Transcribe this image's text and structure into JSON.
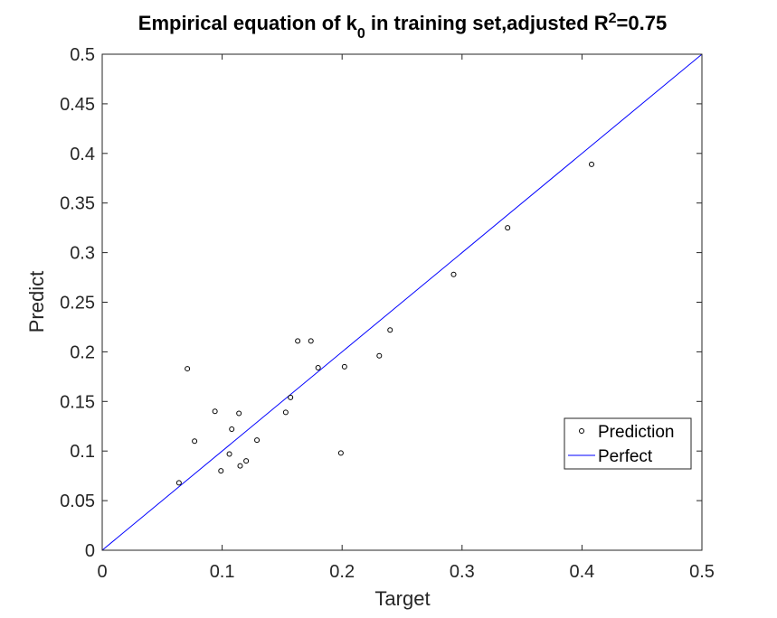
{
  "chart_data": {
    "type": "scatter",
    "title": {
      "main": "Empirical equation of k",
      "subscript": "0",
      "middle": " in training set,adjusted R",
      "superscript": "2",
      "end": "=0.75"
    },
    "xlabel": "Target",
    "ylabel": "Predict",
    "xlim": [
      0,
      0.5
    ],
    "ylim": [
      0,
      0.5
    ],
    "x_ticks": [
      "0",
      "0.1",
      "0.2",
      "0.3",
      "0.4",
      "0.5"
    ],
    "y_ticks": [
      "0",
      "0.05",
      "0.1",
      "0.15",
      "0.2",
      "0.25",
      "0.3",
      "0.35",
      "0.4",
      "0.45",
      "0.5"
    ],
    "grid": false,
    "legend_position": "bottom-right",
    "series": [
      {
        "name": "Prediction",
        "type": "scatter",
        "marker": "open-circle",
        "color": "#000000",
        "points": [
          {
            "x": 0.064,
            "y": 0.068
          },
          {
            "x": 0.071,
            "y": 0.183
          },
          {
            "x": 0.077,
            "y": 0.11
          },
          {
            "x": 0.094,
            "y": 0.14
          },
          {
            "x": 0.099,
            "y": 0.08
          },
          {
            "x": 0.106,
            "y": 0.097
          },
          {
            "x": 0.108,
            "y": 0.122
          },
          {
            "x": 0.114,
            "y": 0.138
          },
          {
            "x": 0.115,
            "y": 0.085
          },
          {
            "x": 0.12,
            "y": 0.09
          },
          {
            "x": 0.129,
            "y": 0.111
          },
          {
            "x": 0.153,
            "y": 0.139
          },
          {
            "x": 0.157,
            "y": 0.154
          },
          {
            "x": 0.163,
            "y": 0.211
          },
          {
            "x": 0.174,
            "y": 0.211
          },
          {
            "x": 0.18,
            "y": 0.184
          },
          {
            "x": 0.199,
            "y": 0.098
          },
          {
            "x": 0.202,
            "y": 0.185
          },
          {
            "x": 0.231,
            "y": 0.196
          },
          {
            "x": 0.24,
            "y": 0.222
          },
          {
            "x": 0.293,
            "y": 0.278
          },
          {
            "x": 0.338,
            "y": 0.325
          },
          {
            "x": 0.408,
            "y": 0.389
          }
        ]
      },
      {
        "name": "Perfect",
        "type": "line",
        "color": "#0000ff",
        "points": [
          {
            "x": 0,
            "y": 0
          },
          {
            "x": 0.5,
            "y": 0.5
          }
        ]
      }
    ]
  }
}
